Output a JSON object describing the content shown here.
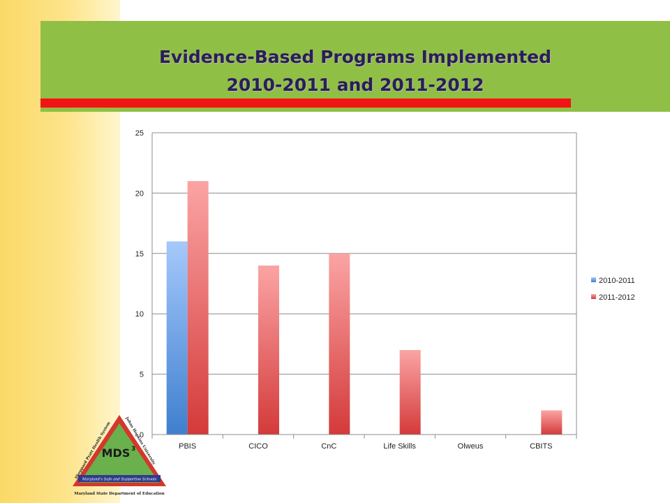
{
  "slide": {
    "title_line1": "Evidence-Based Programs Implemented",
    "title_line2": "2010-2011 and 2011-2012"
  },
  "logo": {
    "center_text": "MDS",
    "superscript": "3",
    "arc_left": "Sheppard Pratt Health System",
    "arc_right": "Johns Hopkins University",
    "banner": "Maryland's Safe and Supportive Schools",
    "footer": "Maryland State Department of Education"
  },
  "chart_data": {
    "type": "bar",
    "categories": [
      "PBIS",
      "CICO",
      "CnC",
      "Life Skills",
      "Olweus",
      "CBITS"
    ],
    "series": [
      {
        "name": "2010-2011",
        "values": [
          16,
          0,
          0,
          0,
          0,
          0
        ],
        "color": "#4a86d4"
      },
      {
        "name": "2011-2012",
        "values": [
          21,
          14,
          15,
          7,
          0,
          2
        ],
        "color": "#d94040"
      }
    ],
    "ylim": [
      0,
      25
    ],
    "yticks": [
      0,
      5,
      10,
      15,
      20,
      25
    ],
    "grid": true,
    "legend": "right"
  }
}
